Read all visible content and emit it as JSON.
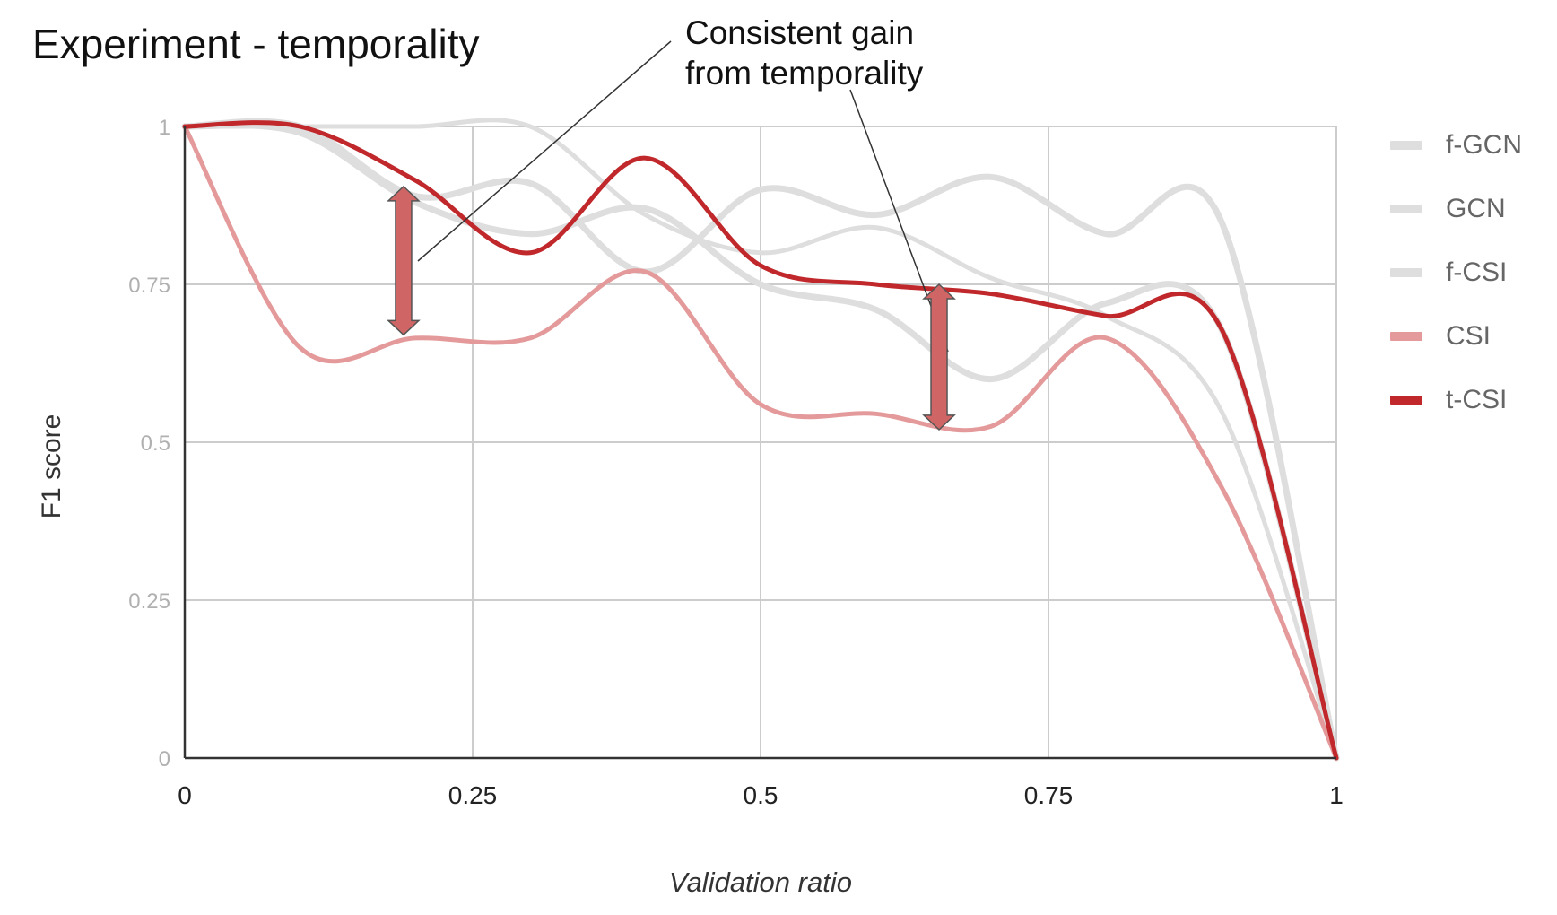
{
  "title": "Experiment - temporality",
  "annotation": {
    "line1": "Consistent gain",
    "line2": "from temporality"
  },
  "chart_data": {
    "type": "line",
    "smooth": true,
    "xlabel": "Validation ratio",
    "ylabel": "F1 score",
    "xlim": [
      0,
      1
    ],
    "ylim": [
      0,
      1
    ],
    "x_ticks": [
      "0",
      "0.25",
      "0.5",
      "0.75",
      "1"
    ],
    "y_ticks": [
      "0",
      "0.25",
      "0.5",
      "0.75",
      "1"
    ],
    "grid": true,
    "legend_position": "right",
    "x": [
      0,
      0.1,
      0.2,
      0.3,
      0.4,
      0.5,
      0.6,
      0.7,
      0.8,
      0.9,
      1.0
    ],
    "series": [
      {
        "name": "f-GCN",
        "color": "#dedede",
        "values": [
          1.0,
          1.0,
          0.89,
          0.91,
          0.77,
          0.9,
          0.86,
          0.92,
          0.83,
          0.85,
          0.0
        ]
      },
      {
        "name": "GCN",
        "color": "#dedede",
        "values": [
          1.0,
          0.99,
          0.88,
          0.83,
          0.87,
          0.75,
          0.71,
          0.6,
          0.72,
          0.68,
          0.0
        ]
      },
      {
        "name": "f-CSI",
        "color": "#dedede",
        "values": [
          1.0,
          1.0,
          1.0,
          1.0,
          0.86,
          0.8,
          0.84,
          0.76,
          0.7,
          0.55,
          0.0
        ]
      },
      {
        "name": "CSI",
        "color": "#e49a9a",
        "values": [
          1.0,
          0.65,
          0.665,
          0.665,
          0.77,
          0.56,
          0.545,
          0.525,
          0.665,
          0.43,
          0.0
        ]
      },
      {
        "name": "t-CSI",
        "color": "#c0282b",
        "values": [
          1.0,
          1.0,
          0.915,
          0.8,
          0.95,
          0.78,
          0.75,
          0.735,
          0.7,
          0.68,
          0.0
        ]
      }
    ],
    "arrows": [
      {
        "x": 0.19,
        "y_from": 0.67,
        "y_to": 0.905
      },
      {
        "x": 0.655,
        "y_from": 0.52,
        "y_to": 0.75
      }
    ]
  }
}
